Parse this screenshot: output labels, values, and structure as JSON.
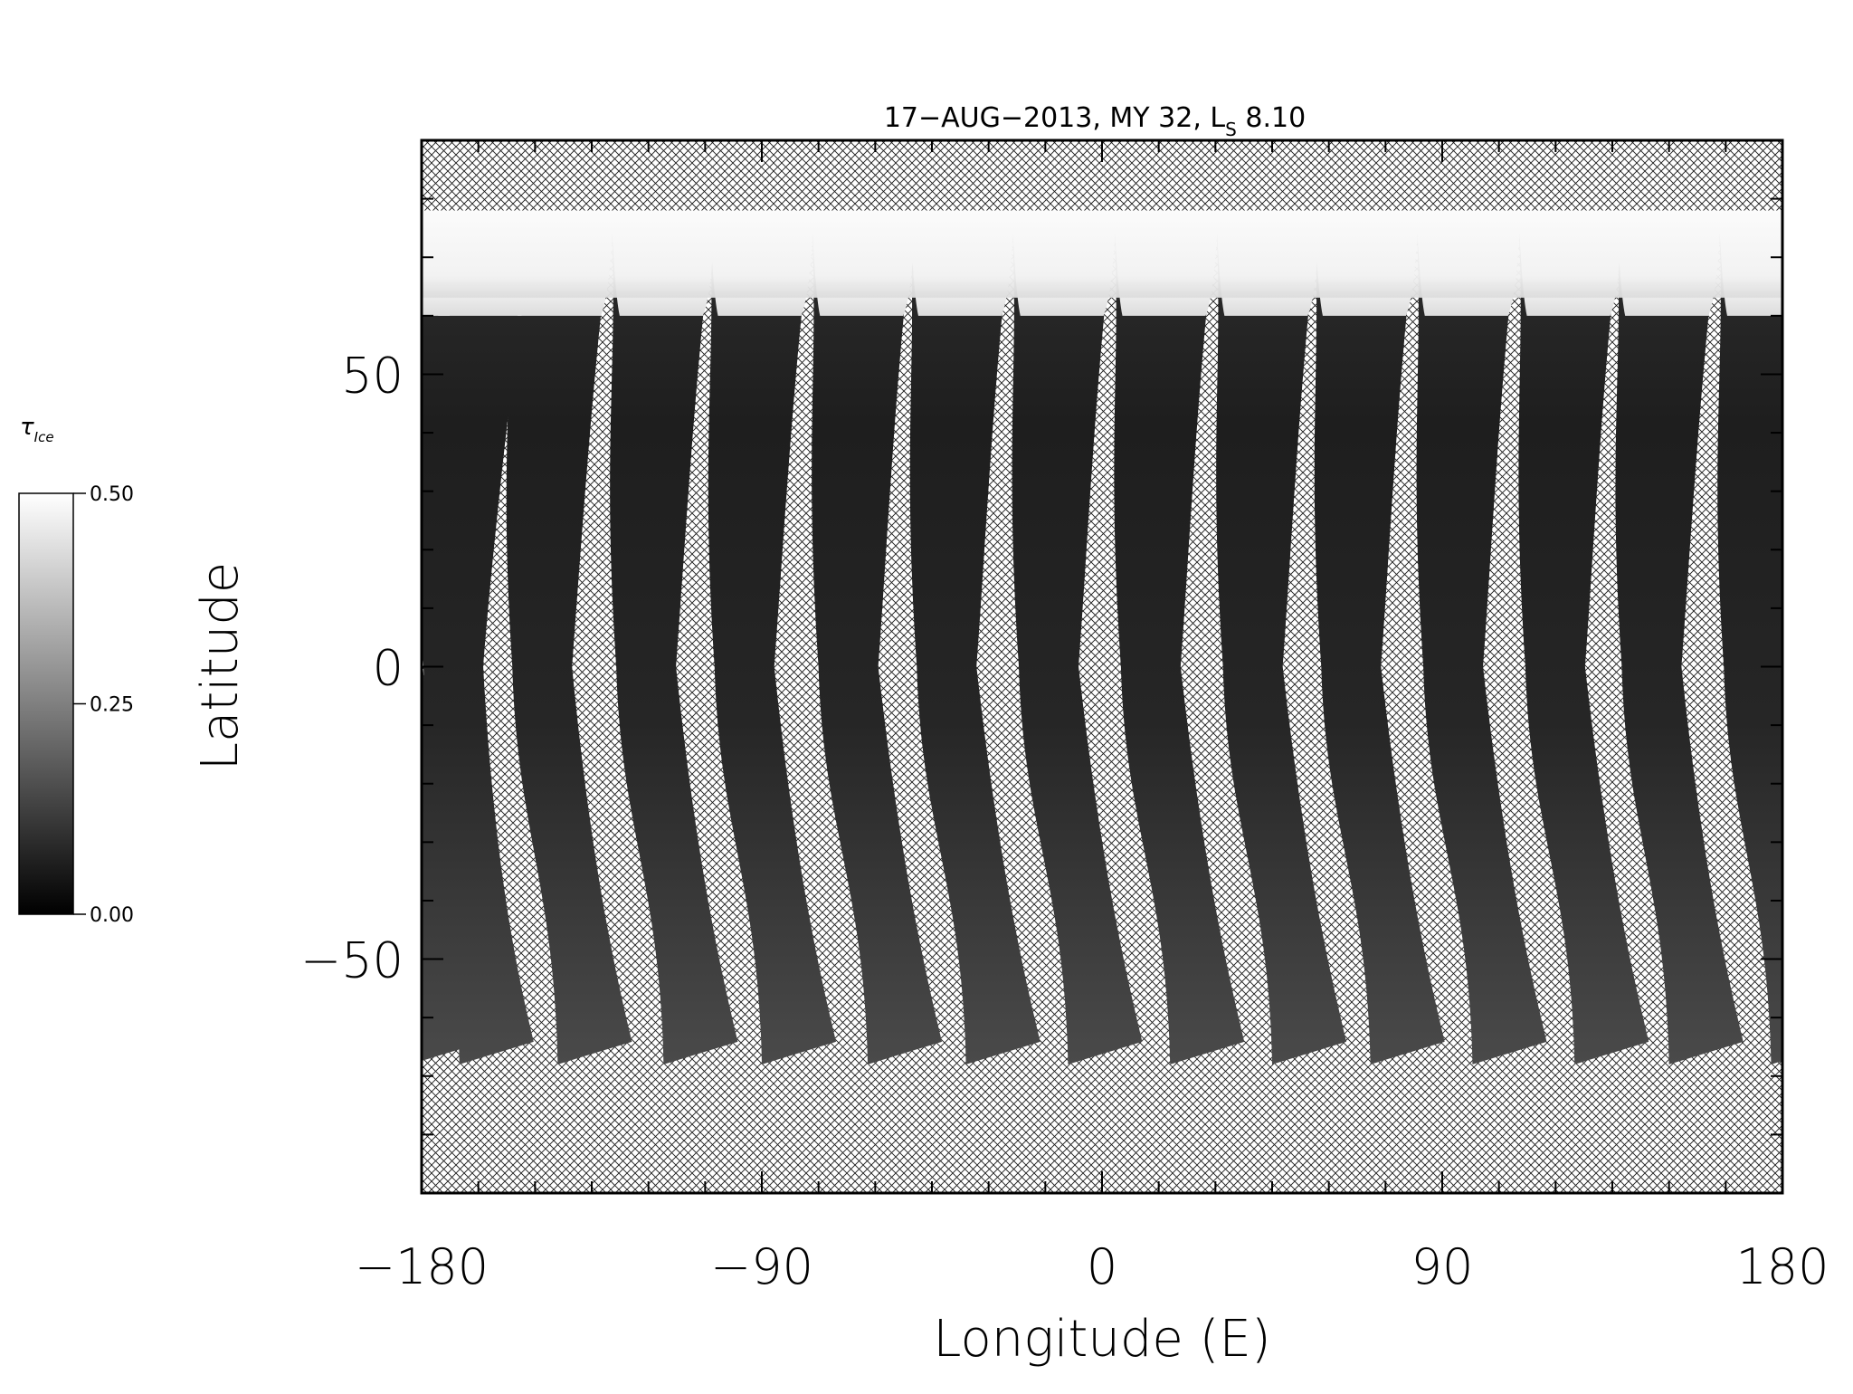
{
  "chart_data": {
    "type": "heatmap",
    "title_text": "17−AUG−2013, MY 32,  L",
    "title_sub": "S",
    "title_value": " 8.10",
    "xlabel": "Longitude (E)",
    "ylabel": "Latitude",
    "xlim": [
      -180,
      180
    ],
    "ylim": [
      -90,
      90
    ],
    "x_ticks": [
      -180,
      -90,
      0,
      90,
      180
    ],
    "x_tick_labels": [
      "−180",
      "−90",
      "0",
      "90",
      "180"
    ],
    "y_ticks": [
      50,
      0,
      -50
    ],
    "y_tick_labels": [
      "50",
      "0",
      "−50"
    ],
    "colorbar": {
      "label": "τ",
      "label_sub": "Ice",
      "range": [
        0.0,
        0.5
      ],
      "ticks": [
        0.0,
        0.25,
        0.5
      ],
      "tick_labels": [
        "0.00",
        "0.25",
        "0.50"
      ],
      "colormap": "grayscale"
    },
    "no_data_pattern": "crosshatch",
    "orbit_swaths": [
      {
        "lon_north": -178,
        "lon_south": -170
      },
      {
        "lon_north": -157,
        "lon_south": -144
      },
      {
        "lon_north": -130,
        "lon_south": -116
      },
      {
        "lon_north": -104,
        "lon_south": -90
      },
      {
        "lon_north": -77,
        "lon_south": -62
      },
      {
        "lon_north": -51,
        "lon_south": -36
      },
      {
        "lon_north": -24,
        "lon_south": -9
      },
      {
        "lon_north": 3,
        "lon_south": 18
      },
      {
        "lon_north": 30,
        "lon_south": 45
      },
      {
        "lon_north": 56,
        "lon_south": 71
      },
      {
        "lon_north": 83,
        "lon_south": 98
      },
      {
        "lon_north": 110,
        "lon_south": 125
      },
      {
        "lon_north": 136,
        "lon_south": 150
      },
      {
        "lon_north": 163,
        "lon_south": 177
      }
    ],
    "swath_lat_north": 78,
    "swath_lat_south": -68,
    "polar_hood_lat_south": 60,
    "polar_hood_value": 0.5,
    "typical_swath_value": 0.06
  }
}
